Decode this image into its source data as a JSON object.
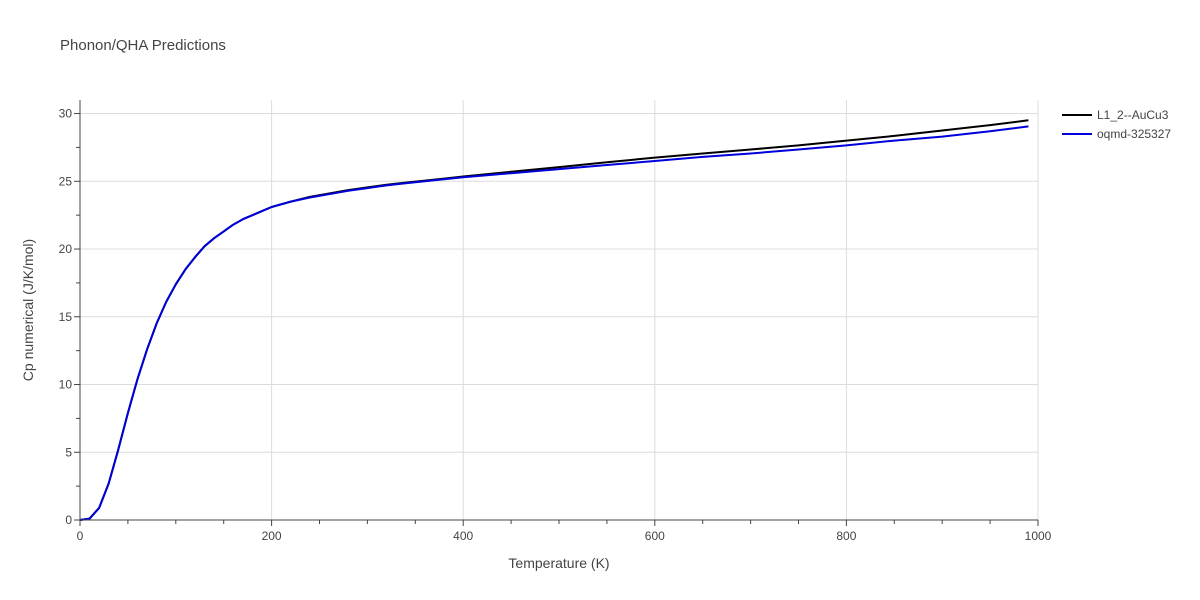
{
  "chart_data": {
    "type": "line",
    "title": "Phonon/QHA Predictions",
    "xlabel": "Temperature (K)",
    "ylabel": "Cp numerical (J/K/mol)",
    "xlim": [
      0,
      1000
    ],
    "ylim": [
      0,
      31
    ],
    "x_ticks": [
      0,
      200,
      400,
      600,
      800,
      1000
    ],
    "x_tick_labels": [
      "0",
      "200",
      "400",
      "600",
      "800",
      "1000"
    ],
    "y_ticks": [
      0,
      5,
      10,
      15,
      20,
      25,
      30
    ],
    "y_tick_labels": [
      "0",
      "5",
      "10",
      "15",
      "20",
      "25",
      "30"
    ],
    "grid": true,
    "legend_position": "top-right",
    "series": [
      {
        "name": "L1_2--AuCu3",
        "color": "#000000",
        "x": [
          0,
          10,
          20,
          30,
          40,
          50,
          60,
          70,
          80,
          90,
          100,
          110,
          120,
          130,
          140,
          150,
          160,
          170,
          180,
          190,
          200,
          220,
          240,
          260,
          280,
          300,
          320,
          340,
          360,
          380,
          400,
          450,
          500,
          550,
          600,
          650,
          700,
          750,
          800,
          850,
          900,
          950,
          990
        ],
        "y": [
          0,
          0.1,
          0.9,
          2.7,
          5.2,
          7.9,
          10.4,
          12.6,
          14.5,
          16.1,
          17.4,
          18.5,
          19.4,
          20.2,
          20.8,
          21.3,
          21.8,
          22.2,
          22.5,
          22.8,
          23.1,
          23.5,
          23.85,
          24.1,
          24.35,
          24.55,
          24.75,
          24.9,
          25.05,
          25.2,
          25.35,
          25.7,
          26.05,
          26.4,
          26.75,
          27.05,
          27.35,
          27.65,
          28.0,
          28.35,
          28.75,
          29.15,
          29.5
        ]
      },
      {
        "name": "oqmd-325327",
        "color": "#0000dd",
        "x": [
          0,
          10,
          20,
          30,
          40,
          50,
          60,
          70,
          80,
          90,
          100,
          110,
          120,
          130,
          140,
          150,
          160,
          170,
          180,
          190,
          200,
          220,
          240,
          260,
          280,
          300,
          320,
          340,
          360,
          380,
          400,
          450,
          500,
          550,
          600,
          650,
          700,
          750,
          800,
          850,
          900,
          950,
          990
        ],
        "y": [
          0,
          0.1,
          0.9,
          2.7,
          5.2,
          7.9,
          10.4,
          12.6,
          14.5,
          16.1,
          17.4,
          18.5,
          19.4,
          20.2,
          20.8,
          21.3,
          21.8,
          22.2,
          22.5,
          22.8,
          23.1,
          23.5,
          23.8,
          24.05,
          24.3,
          24.5,
          24.7,
          24.85,
          25.0,
          25.15,
          25.3,
          25.6,
          25.9,
          26.2,
          26.5,
          26.8,
          27.05,
          27.35,
          27.65,
          28.0,
          28.3,
          28.7,
          29.05
        ]
      }
    ]
  }
}
